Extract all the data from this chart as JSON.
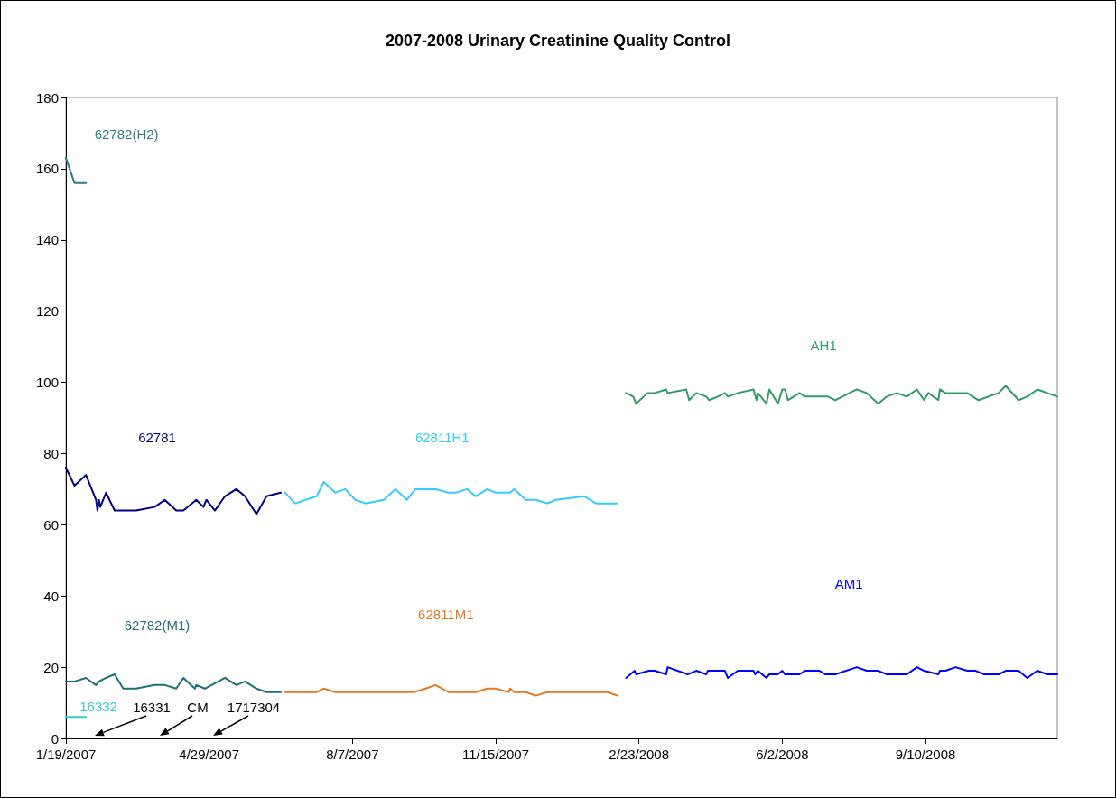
{
  "chart_data": {
    "type": "line",
    "title": "2007-2008 Urinary Creatinine Quality Control",
    "legend": false,
    "grid": false,
    "marker": "none",
    "line_style": "solid",
    "xlim": [
      "2007-01-19",
      "2008-12-11"
    ],
    "xticks": [
      {
        "value": "2007-01-19",
        "label": "1/19/2007"
      },
      {
        "value": "2007-04-29",
        "label": "4/29/2007"
      },
      {
        "value": "2007-08-07",
        "label": "8/7/2007"
      },
      {
        "value": "2007-11-15",
        "label": "11/15/2007"
      },
      {
        "value": "2008-02-23",
        "label": "2/23/2008"
      },
      {
        "value": "2008-06-02",
        "label": "6/2/2008"
      },
      {
        "value": "2008-09-10",
        "label": "9/10/2008"
      }
    ],
    "ylim": [
      0,
      180
    ],
    "yticks": [
      0,
      20,
      40,
      60,
      80,
      100,
      120,
      140,
      160,
      180
    ],
    "series": [
      {
        "name": "62782(H2)",
        "color": "#2a7f7f",
        "x": [
          "2007-01-19",
          "2007-01-25",
          "2007-02-02"
        ],
        "values": [
          163,
          156,
          156
        ]
      },
      {
        "name": "62781",
        "color": "#000080",
        "x": [
          "2007-01-19",
          "2007-01-25",
          "2007-02-02",
          "2007-02-09",
          "2007-02-10",
          "2007-02-11",
          "2007-02-12",
          "2007-02-16",
          "2007-02-22",
          "2007-03-09",
          "2007-03-22",
          "2007-03-29",
          "2007-04-06",
          "2007-04-11",
          "2007-04-20",
          "2007-04-25",
          "2007-04-27",
          "2007-05-03",
          "2007-05-10",
          "2007-05-18",
          "2007-05-24",
          "2007-06-01",
          "2007-06-08",
          "2007-06-18"
        ],
        "values": [
          76,
          71,
          74,
          67,
          64,
          67,
          65,
          69,
          64,
          64,
          65,
          67,
          64,
          64,
          67,
          65,
          67,
          64,
          68,
          70,
          68,
          63,
          68,
          69
        ]
      },
      {
        "name": "62811H1",
        "color": "#33ccff",
        "x": [
          "2007-06-21",
          "2007-06-28",
          "2007-07-13",
          "2007-07-18",
          "2007-07-26",
          "2007-08-02",
          "2007-08-09",
          "2007-08-16",
          "2007-08-29",
          "2007-09-06",
          "2007-09-14",
          "2007-09-20",
          "2007-10-04",
          "2007-10-13",
          "2007-10-18",
          "2007-10-26",
          "2007-11-01",
          "2007-11-09",
          "2007-11-15",
          "2007-11-25",
          "2007-11-28",
          "2007-12-06",
          "2007-12-13",
          "2007-12-21",
          "2007-12-27",
          "2008-01-16",
          "2008-01-24",
          "2008-02-08"
        ],
        "values": [
          69,
          66,
          68,
          72,
          69,
          70,
          67,
          66,
          67,
          70,
          67,
          70,
          70,
          69,
          69,
          70,
          68,
          70,
          69,
          69,
          70,
          67,
          67,
          66,
          67,
          68,
          66,
          66
        ]
      },
      {
        "name": "AH1",
        "color": "#339966",
        "x": [
          "2008-02-14",
          "2008-02-19",
          "2008-02-21",
          "2008-02-29",
          "2008-03-05",
          "2008-03-13",
          "2008-03-14",
          "2008-03-27",
          "2008-03-29",
          "2008-04-03",
          "2008-04-10",
          "2008-04-12",
          "2008-04-18",
          "2008-04-23",
          "2008-04-25",
          "2008-05-02",
          "2008-05-13",
          "2008-05-15",
          "2008-05-16",
          "2008-05-22",
          "2008-05-24",
          "2008-05-30",
          "2008-06-02",
          "2008-06-04",
          "2008-06-06",
          "2008-06-14",
          "2008-06-18",
          "2008-07-04",
          "2008-07-09",
          "2008-07-24",
          "2008-07-31",
          "2008-08-08",
          "2008-08-14",
          "2008-08-21",
          "2008-08-28",
          "2008-09-04",
          "2008-09-09",
          "2008-09-12",
          "2008-09-19",
          "2008-09-20",
          "2008-09-24",
          "2008-10-09",
          "2008-10-17",
          "2008-10-31",
          "2008-11-05",
          "2008-11-14",
          "2008-11-20",
          "2008-11-27",
          "2008-12-04",
          "2008-12-11"
        ],
        "values": [
          97,
          96,
          94,
          97,
          97,
          98,
          97,
          98,
          95,
          97,
          96,
          95,
          96,
          97,
          96,
          97,
          98,
          95,
          97,
          94,
          98,
          94,
          98,
          98,
          95,
          97,
          96,
          96,
          95,
          98,
          97,
          94,
          96,
          97,
          96,
          98,
          95,
          97,
          95,
          98,
          97,
          97,
          95,
          97,
          99,
          95,
          96,
          98,
          97,
          96
        ]
      },
      {
        "name": "AM1",
        "color": "#0000ff",
        "x": [
          "2008-02-14",
          "2008-02-20",
          "2008-02-21",
          "2008-03-01",
          "2008-03-05",
          "2008-03-13",
          "2008-03-14",
          "2008-03-28",
          "2008-04-03",
          "2008-04-10",
          "2008-04-11",
          "2008-04-23",
          "2008-04-25",
          "2008-05-02",
          "2008-05-13",
          "2008-05-14",
          "2008-05-16",
          "2008-05-22",
          "2008-05-24",
          "2008-05-30",
          "2008-06-02",
          "2008-06-04",
          "2008-06-14",
          "2008-06-18",
          "2008-06-28",
          "2008-07-02",
          "2008-07-09",
          "2008-07-24",
          "2008-07-31",
          "2008-08-08",
          "2008-08-14",
          "2008-08-28",
          "2008-09-04",
          "2008-09-09",
          "2008-09-19",
          "2008-09-20",
          "2008-09-24",
          "2008-10-01",
          "2008-10-09",
          "2008-10-15",
          "2008-10-21",
          "2008-10-31",
          "2008-11-05",
          "2008-11-14",
          "2008-11-20",
          "2008-11-27",
          "2008-12-04",
          "2008-12-11"
        ],
        "values": [
          17,
          19,
          18,
          19,
          19,
          18,
          20,
          18,
          19,
          18,
          19,
          19,
          17,
          19,
          19,
          18,
          19,
          17,
          18,
          18,
          19,
          18,
          18,
          19,
          19,
          18,
          18,
          20,
          19,
          19,
          18,
          18,
          20,
          19,
          18,
          19,
          19,
          20,
          19,
          19,
          18,
          18,
          19,
          19,
          17,
          19,
          18,
          18
        ]
      },
      {
        "name": "62782(M1)",
        "color": "#1f6f78",
        "x": [
          "2007-01-19",
          "2007-01-25",
          "2007-02-02",
          "2007-02-09",
          "2007-02-11",
          "2007-02-16",
          "2007-02-22",
          "2007-02-28",
          "2007-03-09",
          "2007-03-22",
          "2007-03-29",
          "2007-04-06",
          "2007-04-11",
          "2007-04-19",
          "2007-04-20",
          "2007-04-26",
          "2007-05-10",
          "2007-05-18",
          "2007-05-24",
          "2007-06-01",
          "2007-06-08",
          "2007-06-18"
        ],
        "values": [
          16,
          16,
          17,
          15,
          16,
          17,
          18,
          14,
          14,
          15,
          15,
          14,
          17,
          14,
          15,
          14,
          17,
          15,
          16,
          14,
          13,
          13
        ]
      },
      {
        "name": "62811M1",
        "color": "#e87722",
        "x": [
          "2007-06-21",
          "2007-07-13",
          "2007-07-18",
          "2007-07-26",
          "2007-09-19",
          "2007-09-27",
          "2007-10-04",
          "2007-10-13",
          "2007-11-01",
          "2007-11-09",
          "2007-11-15",
          "2007-11-24",
          "2007-11-25",
          "2007-11-28",
          "2007-12-06",
          "2007-12-13",
          "2007-12-21",
          "2008-02-01",
          "2008-02-08"
        ],
        "values": [
          13,
          13,
          14,
          13,
          13,
          14,
          15,
          13,
          13,
          14,
          14,
          13,
          14,
          13,
          13,
          12,
          13,
          13,
          12
        ]
      },
      {
        "name": "16332",
        "color": "#33cccc",
        "x": [
          "2007-01-19",
          "2007-02-02"
        ],
        "values": [
          6,
          6
        ]
      }
    ],
    "annotations": [
      "16331",
      "CM",
      "1717304"
    ]
  }
}
